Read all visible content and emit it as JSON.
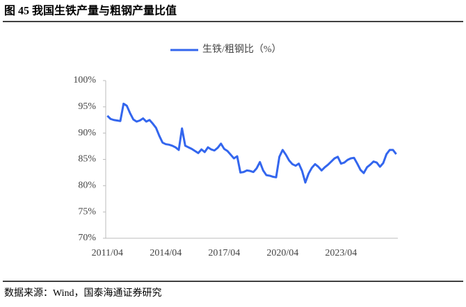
{
  "header": {
    "title": "图 45    我国生铁产量与粗钢产量比值"
  },
  "chart_data": {
    "type": "line",
    "categories": [
      "2011/04",
      null,
      null,
      null,
      null,
      null,
      null,
      null,
      null,
      null,
      null,
      null,
      null,
      null,
      null,
      null,
      null,
      null,
      "2014/04",
      null,
      null,
      null,
      null,
      null,
      null,
      null,
      null,
      null,
      null,
      null,
      null,
      null,
      null,
      null,
      null,
      null,
      "2017/04",
      null,
      null,
      null,
      null,
      null,
      null,
      null,
      null,
      null,
      null,
      null,
      null,
      null,
      null,
      null,
      null,
      null,
      "2020/04",
      null,
      null,
      null,
      null,
      null,
      null,
      null,
      null,
      null,
      null,
      null,
      null,
      null,
      null,
      null,
      null,
      null,
      "2023/04",
      null,
      null,
      null,
      null,
      null,
      null,
      null,
      null,
      null,
      null,
      null,
      null,
      null,
      null,
      null,
      null,
      null
    ],
    "series": [
      {
        "name": "生铁/粗钢比（%）",
        "color": "#3366ee",
        "values": [
          93.3,
          92.7,
          92.5,
          92.4,
          92.3,
          95.6,
          95.2,
          93.8,
          92.6,
          92.2,
          92.4,
          92.8,
          92.2,
          92.5,
          91.8,
          91.0,
          89.5,
          88.2,
          87.9,
          87.8,
          87.6,
          87.3,
          86.8,
          90.9,
          87.6,
          87.3,
          87.0,
          86.6,
          86.2,
          86.9,
          86.4,
          87.3,
          86.9,
          86.7,
          87.2,
          88.0,
          87.0,
          86.6,
          85.9,
          85.2,
          85.6,
          82.5,
          82.6,
          82.9,
          82.8,
          82.6,
          83.3,
          84.5,
          82.9,
          82.0,
          81.9,
          81.7,
          81.6,
          85.5,
          86.8,
          85.9,
          84.8,
          84.1,
          83.8,
          84.2,
          82.8,
          80.6,
          82.3,
          83.4,
          84.1,
          83.6,
          82.9,
          83.5,
          84.0,
          84.6,
          85.2,
          85.5,
          84.2,
          84.4,
          84.9,
          85.2,
          85.3,
          84.2,
          83.0,
          82.4,
          83.5,
          84.0,
          84.6,
          84.4,
          83.6,
          84.3,
          86.0,
          86.8,
          86.8,
          86.0
        ]
      }
    ],
    "ylim": [
      70,
      100
    ],
    "yticks": [
      {
        "value": 70,
        "label": "70%"
      },
      {
        "value": 75,
        "label": "75%"
      },
      {
        "value": 80,
        "label": "80%"
      },
      {
        "value": 85,
        "label": "85%"
      },
      {
        "value": 90,
        "label": "90%"
      },
      {
        "value": 95,
        "label": "95%"
      },
      {
        "value": 100,
        "label": "100%"
      }
    ],
    "grid": false
  },
  "footer": {
    "source": "数据来源：Wind，国泰海通证券研究"
  }
}
